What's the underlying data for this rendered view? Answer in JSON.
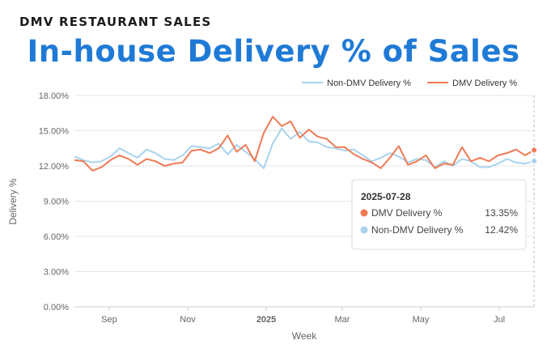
{
  "header": {
    "kicker": "DMV RESTAURANT SALES",
    "title": "In-house Delivery % of Sales"
  },
  "chart_data": {
    "type": "line",
    "xlabel": "Week",
    "ylabel": "Delivery %",
    "ylim": [
      0,
      18
    ],
    "y_ticks": [
      "0.00%",
      "3.00%",
      "6.00%",
      "9.00%",
      "12.00%",
      "15.00%",
      "18.00%"
    ],
    "x_tick_labels": [
      {
        "label": "Sep",
        "date": "2024-09-01",
        "bold": false
      },
      {
        "label": "Nov",
        "date": "2024-11-01",
        "bold": false
      },
      {
        "label": "2025",
        "date": "2025-01-01",
        "bold": true
      },
      {
        "label": "Mar",
        "date": "2025-03-01",
        "bold": false
      },
      {
        "label": "May",
        "date": "2025-05-01",
        "bold": false
      },
      {
        "label": "Jul",
        "date": "2025-07-01",
        "bold": false
      }
    ],
    "x": [
      "2024-08-05",
      "2024-08-12",
      "2024-08-19",
      "2024-08-26",
      "2024-09-02",
      "2024-09-09",
      "2024-09-16",
      "2024-09-23",
      "2024-09-30",
      "2024-10-07",
      "2024-10-14",
      "2024-10-21",
      "2024-10-28",
      "2024-11-04",
      "2024-11-11",
      "2024-11-18",
      "2024-11-25",
      "2024-12-02",
      "2024-12-09",
      "2024-12-16",
      "2024-12-23",
      "2024-12-30",
      "2025-01-06",
      "2025-01-13",
      "2025-01-20",
      "2025-01-27",
      "2025-02-03",
      "2025-02-10",
      "2025-02-17",
      "2025-02-24",
      "2025-03-03",
      "2025-03-10",
      "2025-03-17",
      "2025-03-24",
      "2025-03-31",
      "2025-04-07",
      "2025-04-14",
      "2025-04-21",
      "2025-04-28",
      "2025-05-05",
      "2025-05-12",
      "2025-05-19",
      "2025-05-26",
      "2025-06-02",
      "2025-06-09",
      "2025-06-16",
      "2025-06-23",
      "2025-06-30",
      "2025-07-07",
      "2025-07-14",
      "2025-07-21",
      "2025-07-28"
    ],
    "series": [
      {
        "name": "Non-DMV Delivery %",
        "color": "#a9d3ee",
        "values": [
          12.8,
          12.5,
          12.3,
          12.4,
          12.8,
          13.5,
          13.1,
          12.7,
          13.4,
          13.1,
          12.6,
          12.5,
          12.9,
          13.7,
          13.6,
          13.5,
          13.9,
          13.0,
          13.8,
          13.2,
          12.6,
          11.8,
          13.9,
          15.2,
          14.3,
          14.9,
          14.1,
          14.0,
          13.6,
          13.5,
          13.3,
          13.4,
          12.9,
          12.4,
          12.7,
          13.1,
          12.8,
          12.3,
          12.6,
          12.5,
          11.9,
          12.4,
          12.0,
          12.6,
          12.4,
          11.9,
          11.9,
          12.2,
          12.6,
          12.3,
          12.2,
          12.42
        ]
      },
      {
        "name": "DMV Delivery %",
        "color": "#ee7a55",
        "values": [
          12.5,
          12.4,
          11.6,
          11.9,
          12.5,
          12.9,
          12.6,
          12.1,
          12.6,
          12.4,
          12.0,
          12.2,
          12.3,
          13.3,
          13.4,
          13.1,
          13.5,
          14.6,
          13.2,
          13.8,
          12.4,
          14.8,
          16.2,
          15.4,
          15.8,
          14.4,
          15.1,
          14.5,
          14.3,
          13.6,
          13.6,
          13.0,
          12.6,
          12.3,
          11.8,
          12.7,
          13.7,
          12.1,
          12.4,
          12.9,
          11.8,
          12.2,
          12.1,
          13.6,
          12.4,
          12.7,
          12.4,
          12.9,
          13.1,
          13.4,
          12.9,
          13.35
        ]
      }
    ],
    "legend": {
      "position": "top-right"
    },
    "grid": true,
    "tooltip": {
      "date": "2025-07-28",
      "rows": [
        {
          "name": "DMV Delivery %",
          "value": "13.35%",
          "color": "#ee7a55"
        },
        {
          "name": "Non-DMV Delivery %",
          "value": "12.42%",
          "color": "#a9d3ee"
        }
      ]
    }
  }
}
